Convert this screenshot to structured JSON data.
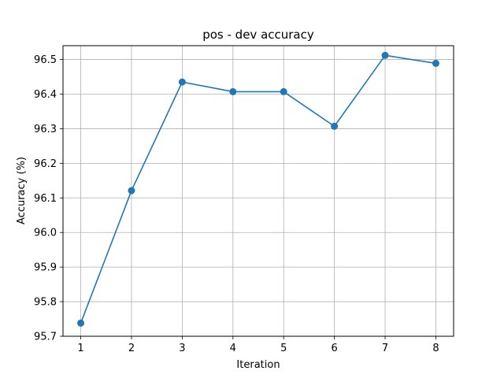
{
  "chart_data": {
    "type": "line",
    "title": "pos - dev accuracy",
    "xlabel": "Iteration",
    "ylabel": "Accuracy (%)",
    "x": [
      1,
      2,
      3,
      4,
      5,
      6,
      7,
      8
    ],
    "x_ticks": [
      "1",
      "2",
      "3",
      "4",
      "5",
      "6",
      "7",
      "8"
    ],
    "y_ticks": [
      "95.7",
      "95.8",
      "95.9",
      "96.0",
      "96.1",
      "96.2",
      "96.3",
      "96.4",
      "96.5"
    ],
    "xlim": [
      0.65,
      8.35
    ],
    "ylim": [
      95.7,
      96.54
    ],
    "grid": true,
    "series": [
      {
        "values": [
          95.738,
          96.121,
          96.435,
          96.407,
          96.407,
          96.307,
          96.512,
          96.489
        ],
        "color": "#1f77b4",
        "marker": "circle"
      }
    ]
  }
}
